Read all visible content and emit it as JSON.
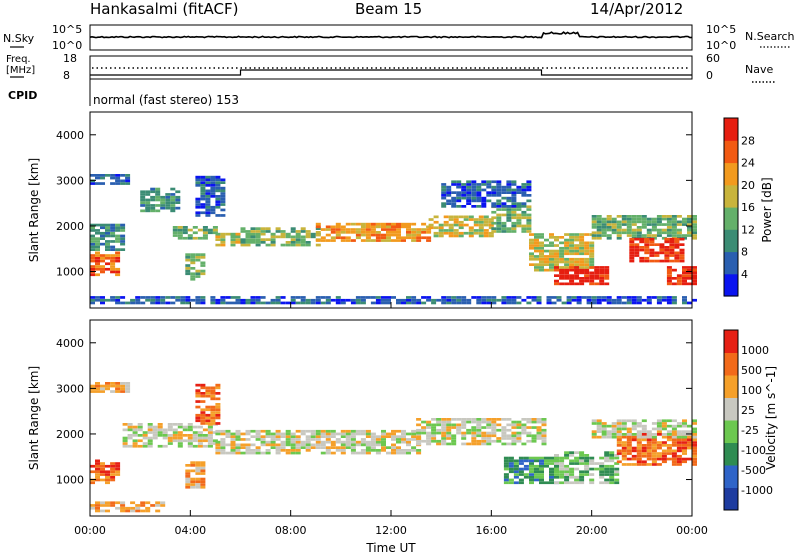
{
  "header": {
    "station": "Hankasalmi (fitACF)",
    "beam": "Beam 15",
    "date": "14/Apr/2012"
  },
  "noise_panel": {
    "left_label": "N.Sky",
    "left_ticks": [
      "10^5",
      "10^0"
    ],
    "right_label": "N.Search",
    "right_ticks": [
      "10^5",
      "10^0"
    ]
  },
  "freq_panel": {
    "left_label_line1": "Freq.",
    "left_label_line2": "[MHz]",
    "left_ticks": [
      "18",
      "8"
    ],
    "right_label": "Nave",
    "right_ticks": [
      "60",
      "0"
    ]
  },
  "cpid": {
    "label": "CPID",
    "text": "normal (fast stereo) 153"
  },
  "x_axis": {
    "label": "Time UT",
    "ticks": [
      "00:00",
      "04:00",
      "08:00",
      "12:00",
      "16:00",
      "20:00",
      "00:00"
    ]
  },
  "chart_data": [
    {
      "type": "heatmap",
      "name": "power",
      "ylabel": "Slant Range [km]",
      "yticks": [
        "4000",
        "3000",
        "2000",
        "1000"
      ],
      "ylim": [
        200,
        4500
      ],
      "xlim_hours": [
        0,
        24
      ],
      "colorbar": {
        "label": "Power [dB]",
        "ticks": [
          "28",
          "24",
          "20",
          "16",
          "12",
          "8",
          "4"
        ],
        "colors": [
          "#0a14f0",
          "#2a5fb0",
          "#3b8c74",
          "#64b06a",
          "#c8b43c",
          "#f29a1e",
          "#f25a12",
          "#e61e10"
        ]
      },
      "regions": [
        {
          "t0": 0.0,
          "t1": 1.2,
          "r0": 900,
          "r1": 1400,
          "level": 6
        },
        {
          "t0": 0.0,
          "t1": 1.3,
          "r0": 1450,
          "r1": 2000,
          "level": 2
        },
        {
          "t0": 0.0,
          "t1": 1.5,
          "r0": 2900,
          "r1": 3100,
          "level": 1
        },
        {
          "t0": 2.0,
          "t1": 3.5,
          "r0": 2300,
          "r1": 2800,
          "level": 2
        },
        {
          "t0": 3.3,
          "t1": 5.0,
          "r0": 1700,
          "r1": 2000,
          "level": 3
        },
        {
          "t0": 3.8,
          "t1": 4.5,
          "r0": 800,
          "r1": 1400,
          "level": 3
        },
        {
          "t0": 4.2,
          "t1": 5.3,
          "r0": 2200,
          "r1": 3100,
          "level": 1
        },
        {
          "t0": 5.0,
          "t1": 6.0,
          "r0": 1550,
          "r1": 1800,
          "level": 4
        },
        {
          "t0": 6.0,
          "t1": 9.0,
          "r0": 1550,
          "r1": 1950,
          "level": 3
        },
        {
          "t0": 9.0,
          "t1": 13.5,
          "r0": 1650,
          "r1": 2050,
          "level": 5
        },
        {
          "t0": 13.5,
          "t1": 16.0,
          "r0": 1750,
          "r1": 2200,
          "level": 4
        },
        {
          "t0": 16.0,
          "t1": 17.5,
          "r0": 1850,
          "r1": 2400,
          "level": 3
        },
        {
          "t0": 14.0,
          "t1": 17.5,
          "r0": 2400,
          "r1": 3000,
          "level": 1
        },
        {
          "t0": 17.5,
          "t1": 20.0,
          "r0": 1000,
          "r1": 1800,
          "level": 4
        },
        {
          "t0": 18.5,
          "t1": 20.5,
          "r0": 700,
          "r1": 1100,
          "level": 7
        },
        {
          "t0": 20.0,
          "t1": 24.0,
          "r0": 1700,
          "r1": 2200,
          "level": 3
        },
        {
          "t0": 21.5,
          "t1": 23.5,
          "r0": 1200,
          "r1": 1700,
          "level": 7
        },
        {
          "t0": 23.0,
          "t1": 24.0,
          "r0": 700,
          "r1": 1100,
          "level": 7
        },
        {
          "t0": 0.0,
          "t1": 24.0,
          "r0": 280,
          "r1": 420,
          "level": 1
        }
      ]
    },
    {
      "type": "heatmap",
      "name": "velocity",
      "ylabel": "Slant Range [km]",
      "yticks": [
        "4000",
        "3000",
        "2000",
        "1000"
      ],
      "ylim": [
        200,
        4500
      ],
      "xlim_hours": [
        0,
        24
      ],
      "colorbar": {
        "label": "Velocity [m s^-1]",
        "ticks": [
          "1000",
          "500",
          "100",
          "25",
          "-25",
          "-100",
          "-500",
          "-1000"
        ],
        "colors": [
          "#1e3ca0",
          "#2f64c8",
          "#2f8c52",
          "#6cc850",
          "#c8c8c0",
          "#f5a02a",
          "#f26a1a",
          "#e62014"
        ]
      },
      "regions": [
        {
          "t0": 0.0,
          "t1": 1.2,
          "r0": 900,
          "r1": 1400,
          "level": 6
        },
        {
          "t0": 0.0,
          "t1": 1.5,
          "r0": 2900,
          "r1": 3100,
          "level": 5
        },
        {
          "t0": 1.3,
          "t1": 5.0,
          "r0": 1700,
          "r1": 2200,
          "level": 4
        },
        {
          "t0": 4.2,
          "t1": 5.2,
          "r0": 2200,
          "r1": 3100,
          "level": 6
        },
        {
          "t0": 3.8,
          "t1": 4.5,
          "r0": 800,
          "r1": 1400,
          "level": 5
        },
        {
          "t0": 5.0,
          "t1": 13.0,
          "r0": 1550,
          "r1": 2050,
          "level": 4
        },
        {
          "t0": 13.0,
          "t1": 18.0,
          "r0": 1750,
          "r1": 2300,
          "level": 4
        },
        {
          "t0": 16.5,
          "t1": 18.5,
          "r0": 900,
          "r1": 1500,
          "level": 2
        },
        {
          "t0": 18.5,
          "t1": 21.0,
          "r0": 900,
          "r1": 1600,
          "level": 3
        },
        {
          "t0": 21.0,
          "t1": 24.0,
          "r0": 1300,
          "r1": 2000,
          "level": 6
        },
        {
          "t0": 20.0,
          "t1": 24.0,
          "r0": 1900,
          "r1": 2300,
          "level": 4
        },
        {
          "t0": 0.0,
          "t1": 3.0,
          "r0": 280,
          "r1": 500,
          "level": 5
        }
      ]
    }
  ]
}
